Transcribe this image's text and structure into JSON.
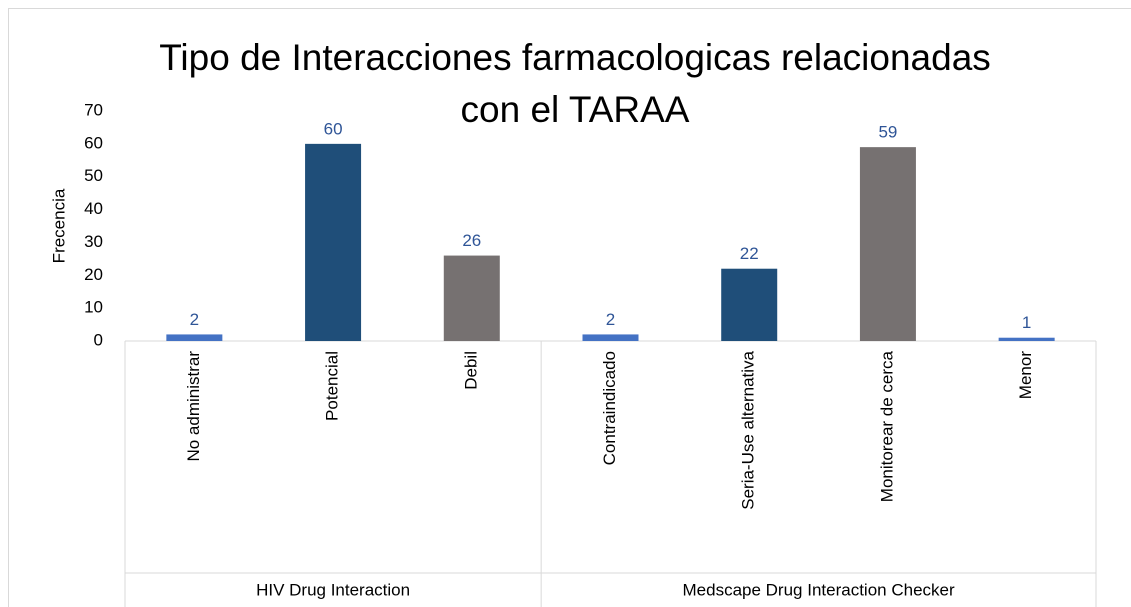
{
  "chart_data": {
    "type": "bar",
    "title": "Tipo de Interacciones farmacologicas relacionadas con el TARAA",
    "y_label": "Frecencia",
    "categories": [
      "No administrar",
      "Potencial",
      "Debil",
      "Contraindicado",
      "Seria-Use alternativa",
      "Monitorear de cerca",
      "Menor"
    ],
    "values": [
      2,
      60,
      26,
      2,
      22,
      59,
      1
    ],
    "colors": [
      "#4472c4",
      "#1f4e79",
      "#767171",
      "#4472c4",
      "#1f4e79",
      "#767171",
      "#4472c4"
    ],
    "groups": [
      {
        "name": "HIV Drug Interaction",
        "span": 3
      },
      {
        "name": "Medscape Drug Interaction Checker",
        "span": 4
      }
    ],
    "ylim": [
      0,
      70
    ],
    "yticks": [
      0,
      10,
      20,
      30,
      40,
      50,
      60,
      70
    ],
    "grid": false
  }
}
